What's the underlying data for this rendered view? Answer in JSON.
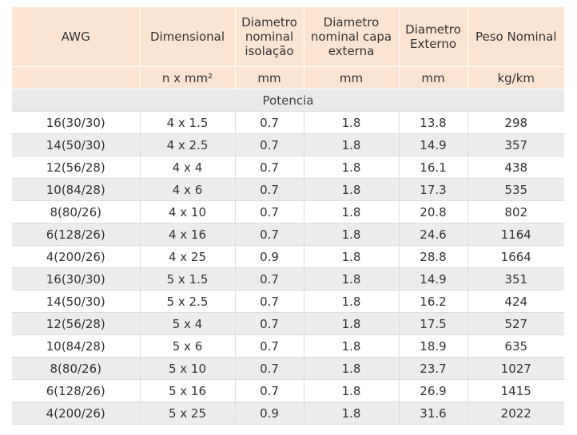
{
  "table": {
    "headers": [
      "AWG",
      "Dimensional",
      "Diametro nominal isolação",
      "Diametro nominal capa externa",
      "Diametro Externo",
      "Peso Nominal"
    ],
    "units": [
      "",
      "n x mm²",
      "mm",
      "mm",
      "mm",
      "kg/km"
    ],
    "section": "Potencia",
    "rows": [
      [
        "16(30/30)",
        "4 x 1.5",
        "0.7",
        "1.8",
        "13.8",
        "298"
      ],
      [
        "14(50/30)",
        "4 x 2.5",
        "0.7",
        "1.8",
        "14.9",
        "357"
      ],
      [
        "12(56/28)",
        "4 x 4",
        "0.7",
        "1.8",
        "16.1",
        "438"
      ],
      [
        "10(84/28)",
        "4 x 6",
        "0.7",
        "1.8",
        "17.3",
        "535"
      ],
      [
        "8(80/26)",
        "4 x 10",
        "0.7",
        "1.8",
        "20.8",
        "802"
      ],
      [
        "6(128/26)",
        "4 x 16",
        "0.7",
        "1.8",
        "24.6",
        "1164"
      ],
      [
        "4(200/26)",
        "4 x 25",
        "0.9",
        "1.8",
        "28.8",
        "1664"
      ],
      [
        "16(30/30)",
        "5 x 1.5",
        "0.7",
        "1.8",
        "14.9",
        "351"
      ],
      [
        "14(50/30)",
        "5 x 2.5",
        "0.7",
        "1.8",
        "16.2",
        "424"
      ],
      [
        "12(56/28)",
        "5 x 4",
        "0.7",
        "1.8",
        "17.5",
        "527"
      ],
      [
        "10(84/28)",
        "5 x 6",
        "0.7",
        "1.8",
        "18.9",
        "635"
      ],
      [
        "8(80/26)",
        "5 x 10",
        "0.7",
        "1.8",
        "23.7",
        "1027"
      ],
      [
        "6(128/26)",
        "5 x 16",
        "0.7",
        "1.8",
        "26.9",
        "1415"
      ],
      [
        "4(200/26)",
        "5 x 25",
        "0.9",
        "1.8",
        "31.6",
        "2022"
      ]
    ]
  }
}
